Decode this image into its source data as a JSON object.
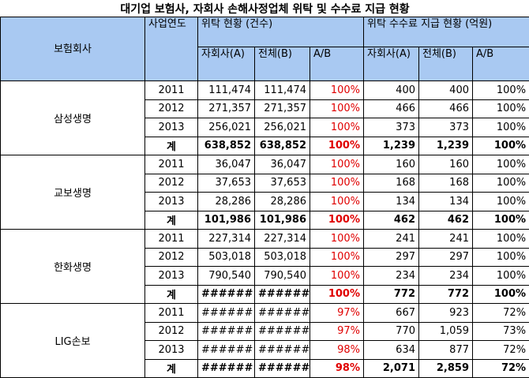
{
  "title": "대기업 보험사, 자회사 손해사정업체 위탁 및 수수료 지급 현황",
  "header": {
    "company": "보험회사",
    "year": "사업연도",
    "group1": "위탁 현황 (건수)",
    "group2": "위탁 수수료 지급 현황 (억원)",
    "sub": [
      "자회사(A)",
      "전체(B)",
      "A/B",
      "자회사(A)",
      "전체(B)",
      "A/B"
    ]
  },
  "companies": [
    {
      "name": "삼성생명",
      "rows": [
        [
          "2011",
          "111,474",
          "111,474",
          "100%",
          "400",
          "400",
          "100%"
        ],
        [
          "2012",
          "271,357",
          "271,357",
          "100%",
          "466",
          "466",
          "100%"
        ],
        [
          "2013",
          "256,021",
          "256,021",
          "100%",
          "373",
          "373",
          "100%"
        ],
        [
          "계",
          "638,852",
          "638,852",
          "100%",
          "1,239",
          "1,239",
          "100%"
        ]
      ]
    },
    {
      "name": "교보생명",
      "rows": [
        [
          "2011",
          "36,047",
          "36,047",
          "100%",
          "160",
          "160",
          "100%"
        ],
        [
          "2012",
          "37,653",
          "37,653",
          "100%",
          "168",
          "168",
          "100%"
        ],
        [
          "2013",
          "28,286",
          "28,286",
          "100%",
          "134",
          "134",
          "100%"
        ],
        [
          "계",
          "101,986",
          "101,986",
          "100%",
          "462",
          "462",
          "100%"
        ]
      ]
    },
    {
      "name": "한화생명",
      "rows": [
        [
          "2011",
          "227,314",
          "227,314",
          "100%",
          "241",
          "241",
          "100%"
        ],
        [
          "2012",
          "503,018",
          "503,018",
          "100%",
          "297",
          "297",
          "100%"
        ],
        [
          "2013",
          "790,540",
          "790,540",
          "100%",
          "234",
          "234",
          "100%"
        ],
        [
          "계",
          "######",
          "######",
          "100%",
          "772",
          "772",
          "100%"
        ]
      ]
    },
    {
      "name": "LIG손보",
      "rows": [
        [
          "2011",
          "######",
          "######",
          "97%",
          "667",
          "923",
          "72%"
        ],
        [
          "2012",
          "######",
          "######",
          "97%",
          "770",
          "1,059",
          "73%"
        ],
        [
          "2013",
          "######",
          "######",
          "98%",
          "634",
          "877",
          "72%"
        ],
        [
          "계",
          "######",
          "######",
          "98%",
          "2,071",
          "2,859",
          "72%"
        ]
      ]
    }
  ]
}
